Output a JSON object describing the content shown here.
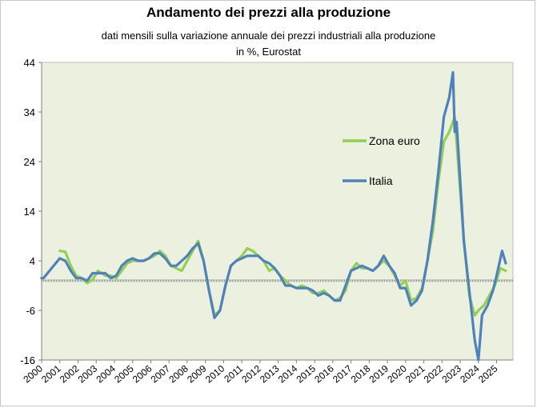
{
  "chart_data": {
    "type": "line",
    "title": "Andamento dei prezzi alla produzione",
    "subtitle_line1": "dati mensili sulla variazione annuale dei prezzi  industriali alla produzione",
    "subtitle_line2": "in %, Eurostat",
    "ylim": [
      -16,
      44
    ],
    "yticks": [
      "44",
      "34",
      "24",
      "14",
      "4",
      "-6",
      "-16"
    ],
    "ytick_values": [
      44,
      34,
      24,
      14,
      4,
      -6,
      -16
    ],
    "xticks": [
      "2000",
      "2001",
      "2002",
      "2003",
      "2004",
      "2005",
      "2006",
      "2007",
      "2008",
      "2009",
      "2010",
      "2011",
      "2012",
      "2013",
      "2014",
      "2015",
      "2016",
      "2017",
      "2018",
      "2019",
      "2020",
      "2021",
      "2022",
      "2023",
      "2024",
      "2025"
    ],
    "xlim": [
      2000,
      2025.9
    ],
    "grid": false,
    "background_color": "#ebf1de",
    "legend_position": "right",
    "series": [
      {
        "name": "Zona euro",
        "color": "#92d050",
        "points": [
          [
            2001.0,
            6.0
          ],
          [
            2001.3,
            5.8
          ],
          [
            2001.6,
            3.0
          ],
          [
            2001.9,
            1.0
          ],
          [
            2002.2,
            0.5
          ],
          [
            2002.5,
            -0.5
          ],
          [
            2002.8,
            0.2
          ],
          [
            2003.1,
            2.0
          ],
          [
            2003.5,
            1.0
          ],
          [
            2003.8,
            1.0
          ],
          [
            2004.1,
            0.5
          ],
          [
            2004.4,
            2.0
          ],
          [
            2004.7,
            3.5
          ],
          [
            2005.0,
            4.0
          ],
          [
            2005.3,
            4.0
          ],
          [
            2005.6,
            4.0
          ],
          [
            2005.9,
            4.5
          ],
          [
            2006.2,
            5.0
          ],
          [
            2006.5,
            6.0
          ],
          [
            2006.8,
            5.0
          ],
          [
            2007.1,
            3.0
          ],
          [
            2007.4,
            2.5
          ],
          [
            2007.7,
            2.0
          ],
          [
            2008.0,
            4.0
          ],
          [
            2008.3,
            6.0
          ],
          [
            2008.6,
            8.0
          ],
          [
            2008.9,
            4.0
          ],
          [
            2009.2,
            -2.0
          ],
          [
            2009.5,
            -7.0
          ],
          [
            2009.8,
            -6.0
          ],
          [
            2010.1,
            -1.0
          ],
          [
            2010.4,
            3.0
          ],
          [
            2010.7,
            4.0
          ],
          [
            2011.0,
            5.0
          ],
          [
            2011.3,
            6.5
          ],
          [
            2011.6,
            6.0
          ],
          [
            2011.9,
            5.0
          ],
          [
            2012.2,
            4.0
          ],
          [
            2012.5,
            2.0
          ],
          [
            2012.8,
            2.5
          ],
          [
            2013.1,
            1.0
          ],
          [
            2013.4,
            0.0
          ],
          [
            2013.7,
            -1.0
          ],
          [
            2014.0,
            -1.5
          ],
          [
            2014.3,
            -1.0
          ],
          [
            2014.6,
            -1.5
          ],
          [
            2014.9,
            -2.5
          ],
          [
            2015.2,
            -2.5
          ],
          [
            2015.5,
            -2.0
          ],
          [
            2015.8,
            -3.0
          ],
          [
            2016.1,
            -4.0
          ],
          [
            2016.4,
            -3.5
          ],
          [
            2016.7,
            -2.0
          ],
          [
            2017.0,
            2.0
          ],
          [
            2017.3,
            3.5
          ],
          [
            2017.6,
            2.5
          ],
          [
            2017.9,
            2.5
          ],
          [
            2018.2,
            2.0
          ],
          [
            2018.5,
            3.0
          ],
          [
            2018.8,
            4.0
          ],
          [
            2019.1,
            3.0
          ],
          [
            2019.4,
            1.0
          ],
          [
            2019.7,
            -1.0
          ],
          [
            2020.0,
            0.0
          ],
          [
            2020.3,
            -4.0
          ],
          [
            2020.6,
            -3.5
          ],
          [
            2020.9,
            -1.5
          ],
          [
            2021.2,
            4.0
          ],
          [
            2021.5,
            10.0
          ],
          [
            2021.8,
            20.0
          ],
          [
            2022.1,
            28.0
          ],
          [
            2022.4,
            30.0
          ],
          [
            2022.7,
            33.0
          ],
          [
            2022.8,
            28.0
          ],
          [
            2023.0,
            18.0
          ],
          [
            2023.2,
            8.0
          ],
          [
            2023.5,
            -3.0
          ],
          [
            2023.8,
            -7.0
          ],
          [
            2024.0,
            -6.0
          ],
          [
            2024.3,
            -5.0
          ],
          [
            2024.6,
            -3.0
          ],
          [
            2024.9,
            -1.0
          ],
          [
            2025.2,
            2.5
          ],
          [
            2025.5,
            2.0
          ]
        ]
      },
      {
        "name": "Italia",
        "color": "#4f81bd",
        "points": [
          [
            2000.0,
            0.5
          ],
          [
            2000.1,
            0.5
          ],
          [
            2001.0,
            4.5
          ],
          [
            2001.3,
            4.0
          ],
          [
            2001.6,
            2.0
          ],
          [
            2001.9,
            0.5
          ],
          [
            2002.2,
            0.5
          ],
          [
            2002.5,
            0.0
          ],
          [
            2002.8,
            1.5
          ],
          [
            2003.1,
            1.5
          ],
          [
            2003.5,
            1.5
          ],
          [
            2003.8,
            0.5
          ],
          [
            2004.1,
            1.0
          ],
          [
            2004.4,
            3.0
          ],
          [
            2004.7,
            4.0
          ],
          [
            2005.0,
            4.5
          ],
          [
            2005.3,
            4.0
          ],
          [
            2005.6,
            4.0
          ],
          [
            2005.9,
            4.5
          ],
          [
            2006.2,
            5.5
          ],
          [
            2006.5,
            5.5
          ],
          [
            2006.8,
            4.5
          ],
          [
            2007.1,
            3.0
          ],
          [
            2007.4,
            3.0
          ],
          [
            2007.7,
            4.0
          ],
          [
            2008.0,
            5.0
          ],
          [
            2008.3,
            6.5
          ],
          [
            2008.6,
            7.5
          ],
          [
            2008.9,
            4.0
          ],
          [
            2009.2,
            -2.0
          ],
          [
            2009.5,
            -7.5
          ],
          [
            2009.8,
            -6.0
          ],
          [
            2010.1,
            -1.0
          ],
          [
            2010.4,
            3.0
          ],
          [
            2010.7,
            4.0
          ],
          [
            2011.0,
            4.5
          ],
          [
            2011.3,
            5.0
          ],
          [
            2011.6,
            5.0
          ],
          [
            2011.9,
            5.0
          ],
          [
            2012.2,
            4.0
          ],
          [
            2012.5,
            3.5
          ],
          [
            2012.8,
            2.5
          ],
          [
            2013.1,
            1.0
          ],
          [
            2013.4,
            -1.0
          ],
          [
            2013.7,
            -1.0
          ],
          [
            2014.0,
            -1.5
          ],
          [
            2014.3,
            -1.5
          ],
          [
            2014.6,
            -1.5
          ],
          [
            2014.9,
            -2.0
          ],
          [
            2015.2,
            -3.0
          ],
          [
            2015.5,
            -2.5
          ],
          [
            2015.8,
            -3.0
          ],
          [
            2016.1,
            -4.0
          ],
          [
            2016.4,
            -4.0
          ],
          [
            2016.7,
            -1.0
          ],
          [
            2017.0,
            2.0
          ],
          [
            2017.3,
            2.5
          ],
          [
            2017.6,
            3.0
          ],
          [
            2017.9,
            2.5
          ],
          [
            2018.2,
            2.0
          ],
          [
            2018.5,
            3.0
          ],
          [
            2018.8,
            5.0
          ],
          [
            2019.1,
            3.0
          ],
          [
            2019.4,
            1.5
          ],
          [
            2019.7,
            -1.5
          ],
          [
            2020.0,
            -1.5
          ],
          [
            2020.3,
            -5.0
          ],
          [
            2020.6,
            -4.0
          ],
          [
            2020.9,
            -2.0
          ],
          [
            2021.2,
            4.0
          ],
          [
            2021.5,
            12.0
          ],
          [
            2021.8,
            22.0
          ],
          [
            2022.1,
            33.0
          ],
          [
            2022.4,
            37.0
          ],
          [
            2022.6,
            42.0
          ],
          [
            2022.7,
            30.0
          ],
          [
            2022.8,
            32.0
          ],
          [
            2023.0,
            20.0
          ],
          [
            2023.2,
            8.0
          ],
          [
            2023.5,
            -2.0
          ],
          [
            2023.8,
            -12.0
          ],
          [
            2024.0,
            -16.0
          ],
          [
            2024.2,
            -7.0
          ],
          [
            2024.5,
            -5.0
          ],
          [
            2024.8,
            -2.0
          ],
          [
            2025.0,
            1.0
          ],
          [
            2025.3,
            6.0
          ],
          [
            2025.5,
            3.5
          ]
        ]
      }
    ]
  }
}
